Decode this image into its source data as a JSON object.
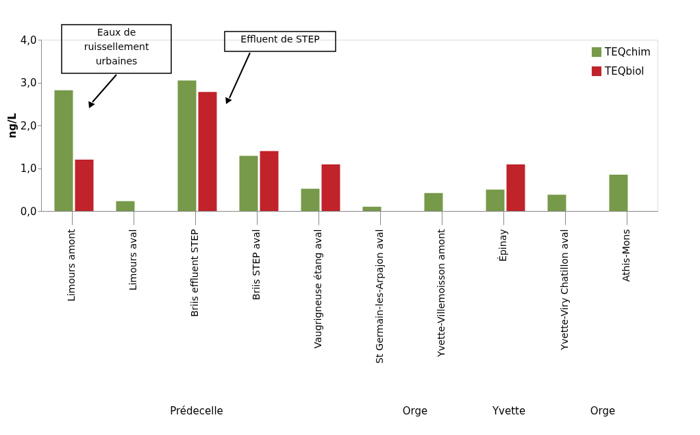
{
  "chart_data": {
    "type": "bar",
    "ylabel": "ng/L",
    "categories": [
      "Limours  amont",
      "Limours  aval",
      "Briis  effluent  STEP",
      "Briis  STEP  aval",
      "Vaugrigneuse étang aval",
      "St Germain-les-Arpajon aval",
      "Yvette-Villemoisson  amont",
      "Épinay",
      "Yvette-Viry Chatillon aval",
      "Athis-Mons"
    ],
    "series": [
      {
        "name": "TEQchim",
        "color": "#77994a",
        "values": [
          2.82,
          0.23,
          3.05,
          1.29,
          0.52,
          0.1,
          0.42,
          0.5,
          0.38,
          0.85
        ]
      },
      {
        "name": "TEQbiol",
        "color": "#c0232a",
        "values": [
          1.2,
          null,
          2.78,
          1.4,
          1.09,
          null,
          null,
          1.09,
          null,
          null
        ]
      }
    ],
    "ylim": [
      0,
      4
    ],
    "yticks": [
      {
        "value": 0,
        "label": "0,0"
      },
      {
        "value": 1,
        "label": "1,0"
      },
      {
        "value": 2,
        "label": "2,0"
      },
      {
        "value": 3,
        "label": "3,0"
      },
      {
        "value": 4,
        "label": "4,0"
      }
    ],
    "grid": false,
    "legend": "top right",
    "annotations": [
      "Eaux de\nruissellement\nurbaines",
      "Effluent de STEP",
      "Prédecelle",
      "Orge",
      "Yvette",
      "Orge"
    ]
  }
}
